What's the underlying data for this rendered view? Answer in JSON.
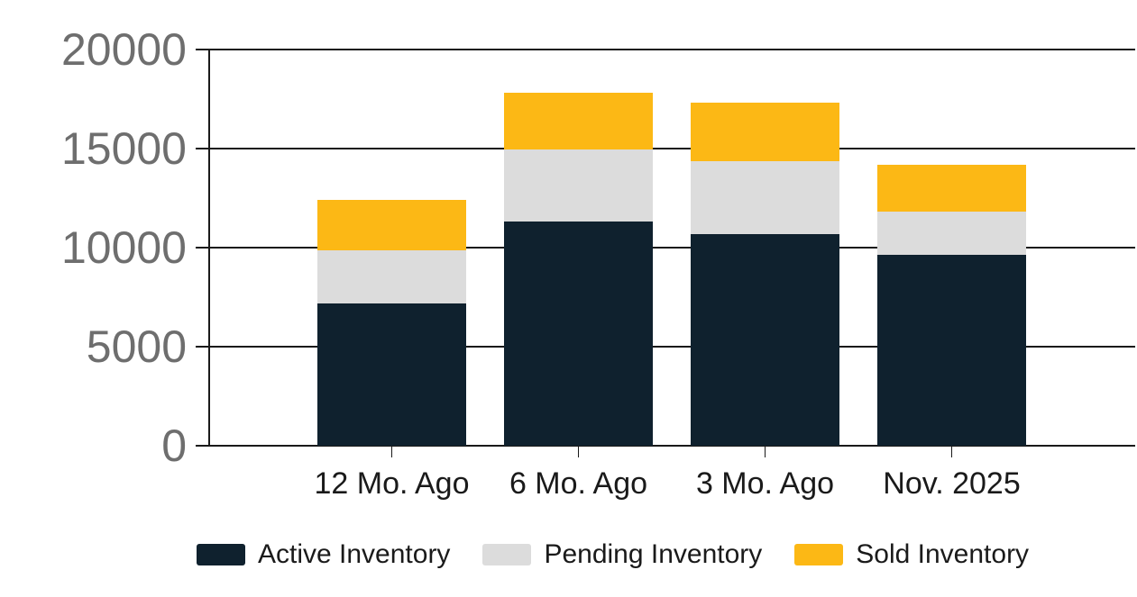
{
  "chart_data": {
    "type": "bar",
    "stacked": true,
    "title": "",
    "xlabel": "",
    "ylabel": "",
    "categories": [
      "12 Mo. Ago",
      "6 Mo. Ago",
      "3 Mo. Ago",
      "Nov. 2025"
    ],
    "series": [
      {
        "name": "Active Inventory",
        "color": "#0f212e",
        "values": [
          7200,
          11300,
          10700,
          9650
        ]
      },
      {
        "name": "Pending Inventory",
        "color": "#dcdcdc",
        "values": [
          2650,
          3650,
          3650,
          2150
        ]
      },
      {
        "name": "Sold Inventory",
        "color": "#fcb815",
        "values": [
          2550,
          2850,
          2950,
          2400
        ]
      }
    ],
    "stack_totals": [
      12400,
      17800,
      17300,
      14200
    ],
    "ylim": [
      0,
      20000
    ],
    "y_ticks": [
      0,
      5000,
      10000,
      15000,
      20000
    ],
    "y_tick_labels": [
      "0",
      "5000",
      "10000",
      "15000",
      "20000"
    ],
    "grid": true,
    "legend_position": "bottom"
  },
  "colors": {
    "background": "#ffffff",
    "axis_line": "#1a1a1a",
    "gridline": "#1a1a1a",
    "y_tick_label_text": "#6e6e6e",
    "x_tick_label_text": "#1a1a1a",
    "legend_label_text": "#1a1a1a"
  }
}
